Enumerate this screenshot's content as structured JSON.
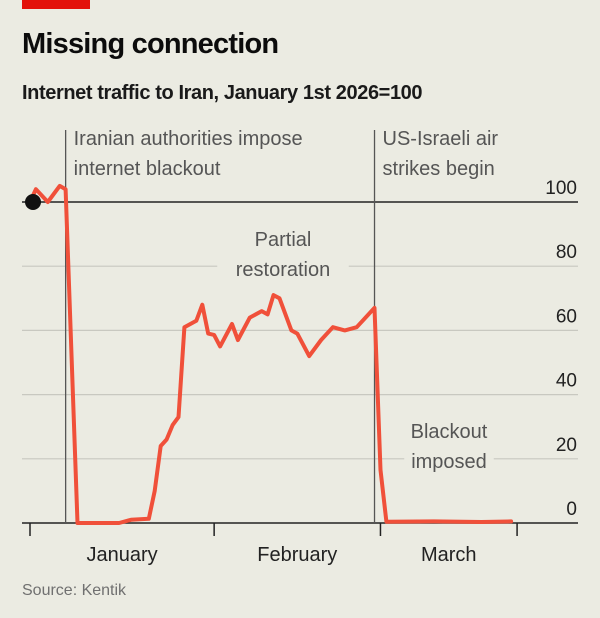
{
  "header": {
    "title": "Missing connection",
    "subtitle": "Internet traffic to Iran, January 1st 2026=100"
  },
  "source": "Source: Kentik",
  "colors": {
    "line": "#f0503a",
    "accent": "#e3120b",
    "grid": "#c8c8c0",
    "axis": "#333333"
  },
  "chart_data": {
    "type": "line",
    "title": "Missing connection",
    "subtitle": "Internet traffic to Iran, January 1st 2026=100",
    "ylim": [
      0,
      100
    ],
    "yticks": [
      0,
      20,
      40,
      60,
      80,
      100
    ],
    "y_axis_side": "right",
    "grid": true,
    "x_tick_dates": [
      "2026-01-01",
      "2026-02-01",
      "2026-03-01",
      "2026-03-24"
    ],
    "x_month_labels": [
      {
        "label": "January",
        "from": "2026-01-01",
        "to": "2026-02-01"
      },
      {
        "label": "February",
        "from": "2026-02-01",
        "to": "2026-03-01"
      },
      {
        "label": "March",
        "from": "2026-03-01",
        "to": "2026-03-24"
      }
    ],
    "series": [
      {
        "x": [
          "2026-01-01",
          "2026-01-02",
          "2026-01-04",
          "2026-01-06",
          "2026-01-07",
          "2026-01-09",
          "2026-01-16",
          "2026-01-18",
          "2026-01-21",
          "2026-01-22",
          "2026-01-23",
          "2026-01-24",
          "2026-01-25",
          "2026-01-26",
          "2026-01-27",
          "2026-01-29",
          "2026-01-30",
          "2026-01-31",
          "2026-02-01",
          "2026-02-02",
          "2026-02-04",
          "2026-02-05",
          "2026-02-07",
          "2026-02-09",
          "2026-02-10",
          "2026-02-11",
          "2026-02-12",
          "2026-02-14",
          "2026-02-15",
          "2026-02-17",
          "2026-02-19",
          "2026-02-21",
          "2026-02-23",
          "2026-02-25",
          "2026-02-28",
          "2026-03-01",
          "2026-03-02",
          "2026-03-10",
          "2026-03-18",
          "2026-03-23"
        ],
        "y": [
          100,
          104,
          100,
          105,
          104,
          0,
          0,
          1,
          1.3,
          10,
          24,
          26,
          30.5,
          33,
          61,
          63,
          68,
          59,
          58.6,
          55,
          62,
          57,
          64,
          66,
          65,
          71,
          70,
          60,
          59,
          52,
          57,
          61,
          60,
          61,
          67,
          16.5,
          0.4,
          0.5,
          0.3,
          0.5
        ]
      }
    ],
    "annotations": [
      {
        "date": "2026-01-07",
        "lines": [
          "Iranian authorities impose",
          "internet blackout"
        ]
      },
      {
        "date": "2026-02-28",
        "lines": [
          "US-Israeli air",
          "strikes begin"
        ]
      }
    ],
    "labels": [
      {
        "lines": [
          "Partial",
          "restoration"
        ]
      },
      {
        "lines": [
          "Blackout",
          "imposed"
        ]
      }
    ]
  }
}
